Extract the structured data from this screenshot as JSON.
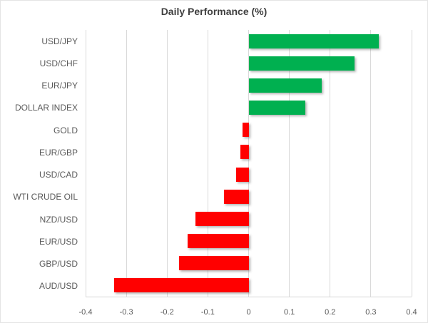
{
  "chart_data": {
    "type": "bar",
    "orientation": "horizontal",
    "title": "Daily Performance (%)",
    "categories": [
      "USD/JPY",
      "USD/CHF",
      "EUR/JPY",
      "DOLLAR INDEX",
      "GOLD",
      "EUR/GBP",
      "USD/CAD",
      "WTI CRUDE OIL",
      "NZD/USD",
      "EUR/USD",
      "GBP/USD",
      "AUD/USD"
    ],
    "values": [
      0.32,
      0.26,
      0.18,
      0.14,
      -0.015,
      -0.02,
      -0.03,
      -0.06,
      -0.13,
      -0.15,
      -0.17,
      -0.33
    ],
    "xlim": [
      -0.4,
      0.4
    ],
    "x_ticks": [
      -0.4,
      -0.3,
      -0.2,
      -0.1,
      0,
      0.1,
      0.2,
      0.3,
      0.4
    ],
    "x_tick_labels": [
      "-0.4",
      "-0.3",
      "-0.2",
      "-0.1",
      "0",
      "0.1",
      "0.2",
      "0.3",
      "0.4"
    ],
    "grid": "vertical",
    "legend": "none",
    "positive_color": "#00B050",
    "negative_color": "#FF0000",
    "gridline_color": "#d9d9d9",
    "label_color": "#595959",
    "title_color": "#404040"
  }
}
